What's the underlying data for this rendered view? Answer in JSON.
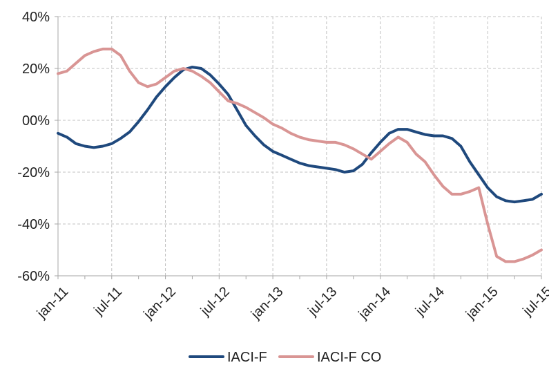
{
  "chart_data": {
    "type": "line",
    "title": "",
    "xlabel": "",
    "ylabel": "",
    "ylim": [
      -0.6,
      0.4
    ],
    "y_ticks": [
      "40%",
      "20%",
      "00%",
      "-20%",
      "-40%",
      "-60%"
    ],
    "y_tick_values": [
      0.4,
      0.2,
      0.0,
      -0.2,
      -0.4,
      -0.6
    ],
    "x_tick_labels": [
      "jan-11",
      "jul-11",
      "jan-12",
      "jul-12",
      "jan-13",
      "jul-13",
      "jan-14",
      "jul-14",
      "jan-15",
      "jul-15"
    ],
    "x_tick_months": [
      0,
      6,
      12,
      18,
      24,
      30,
      36,
      42,
      48,
      54
    ],
    "grid": true,
    "legend_position": "bottom",
    "colors": {
      "IACI-F": "#1f497d",
      "IACI-F CO": "#d99594",
      "grid": "#c0c0c0",
      "axis": "#a6a6a6"
    },
    "series": [
      {
        "name": "IACI-F",
        "months": [
          0,
          1,
          2,
          3,
          4,
          5,
          6,
          7,
          8,
          9,
          10,
          11,
          12,
          13,
          14,
          15,
          16,
          17,
          18,
          19,
          20,
          21,
          22,
          23,
          24,
          25,
          26,
          27,
          28,
          29,
          30,
          31,
          32,
          33,
          34,
          35,
          36,
          37,
          38,
          39,
          40,
          41,
          42,
          43,
          44,
          45,
          46,
          47,
          48,
          49,
          50,
          51,
          52,
          53,
          54
        ],
        "values": [
          -0.05,
          -0.065,
          -0.09,
          -0.1,
          -0.105,
          -0.1,
          -0.09,
          -0.07,
          -0.045,
          -0.005,
          0.04,
          0.09,
          0.13,
          0.165,
          0.195,
          0.205,
          0.2,
          0.175,
          0.14,
          0.1,
          0.04,
          -0.02,
          -0.06,
          -0.095,
          -0.12,
          -0.135,
          -0.15,
          -0.165,
          -0.175,
          -0.18,
          -0.185,
          -0.19,
          -0.2,
          -0.195,
          -0.17,
          -0.125,
          -0.085,
          -0.05,
          -0.035,
          -0.035,
          -0.045,
          -0.055,
          -0.06,
          -0.06,
          -0.07,
          -0.1,
          -0.16,
          -0.21,
          -0.26,
          -0.295,
          -0.31,
          -0.315,
          -0.31,
          -0.305,
          -0.285
        ]
      },
      {
        "name": "IACI-F CO",
        "months": [
          0,
          1,
          2,
          3,
          4,
          5,
          6,
          7,
          8,
          9,
          10,
          11,
          12,
          13,
          14,
          15,
          16,
          17,
          18,
          19,
          20,
          21,
          22,
          23,
          24,
          25,
          26,
          27,
          28,
          29,
          30,
          31,
          32,
          33,
          34,
          35,
          36,
          37,
          38,
          39,
          40,
          41,
          42,
          43,
          44,
          45,
          46,
          47,
          48,
          49,
          50,
          51,
          52,
          53,
          54
        ],
        "values": [
          0.18,
          0.19,
          0.22,
          0.25,
          0.265,
          0.275,
          0.275,
          0.25,
          0.19,
          0.145,
          0.13,
          0.14,
          0.165,
          0.19,
          0.2,
          0.19,
          0.17,
          0.145,
          0.11,
          0.075,
          0.065,
          0.05,
          0.03,
          0.01,
          -0.015,
          -0.03,
          -0.05,
          -0.065,
          -0.075,
          -0.08,
          -0.085,
          -0.085,
          -0.095,
          -0.11,
          -0.13,
          -0.15,
          -0.12,
          -0.09,
          -0.065,
          -0.085,
          -0.13,
          -0.16,
          -0.21,
          -0.255,
          -0.285,
          -0.285,
          -0.275,
          -0.26,
          -0.4,
          -0.525,
          -0.545,
          -0.545,
          -0.535,
          -0.52,
          -0.5
        ]
      }
    ]
  }
}
